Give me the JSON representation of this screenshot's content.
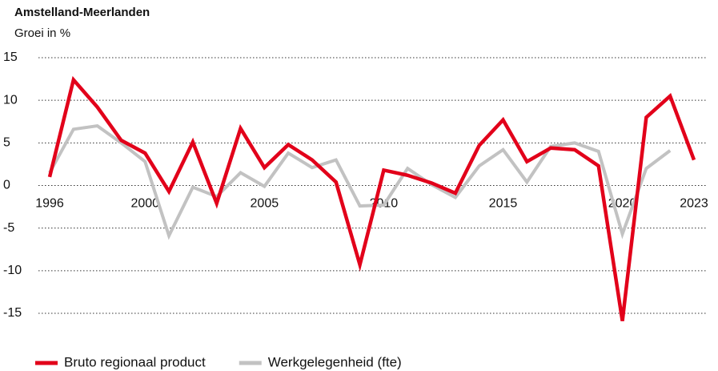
{
  "chart_data": {
    "type": "line",
    "title": "Amstelland-Meerlanden",
    "subtitle": "Groei in %",
    "x": [
      1996,
      1997,
      1998,
      1999,
      2000,
      2001,
      2002,
      2003,
      2004,
      2005,
      2006,
      2007,
      2008,
      2009,
      2010,
      2011,
      2012,
      2013,
      2014,
      2015,
      2016,
      2017,
      2018,
      2019,
      2020,
      2021,
      2022,
      2023
    ],
    "series": [
      {
        "name": "Werkgelegenheid (fte)",
        "color": "#c2c2c2",
        "values": [
          1.5,
          6.6,
          7.0,
          5.0,
          2.8,
          -5.9,
          -0.2,
          -1.3,
          1.5,
          -0.1,
          3.8,
          2.1,
          3.0,
          -2.4,
          -2.3,
          2.0,
          0.1,
          -1.4,
          2.3,
          4.2,
          0.4,
          4.6,
          5.0,
          4.0,
          -5.7,
          2.0,
          4.1,
          null
        ]
      },
      {
        "name": "Bruto regionaal product",
        "color": "#e2001a",
        "values": [
          1.0,
          12.4,
          9.2,
          5.3,
          3.8,
          -0.7,
          5.1,
          -2.1,
          6.7,
          2.1,
          4.8,
          3.0,
          0.4,
          -9.3,
          1.8,
          1.2,
          0.3,
          -0.9,
          4.7,
          7.7,
          2.8,
          4.4,
          4.2,
          2.3,
          -15.9,
          8.0,
          10.5,
          3.0
        ]
      }
    ],
    "xlim": [
      1996,
      2023
    ],
    "xticks": [
      1996,
      2000,
      2005,
      2010,
      2015,
      2020,
      2023
    ],
    "ylim": [
      -15,
      15
    ],
    "yticks": [
      15,
      10,
      5,
      0,
      -5,
      -10,
      -15
    ],
    "grid": true,
    "legend": "bottom"
  }
}
